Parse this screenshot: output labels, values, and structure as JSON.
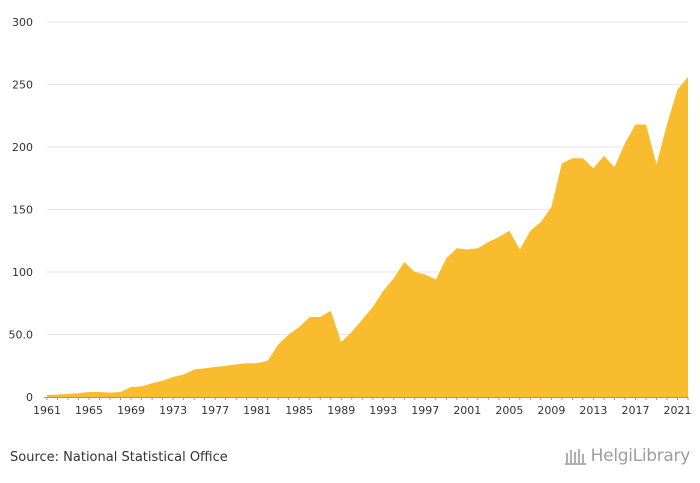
{
  "chart_data": {
    "type": "area",
    "title": "",
    "xlabel": "",
    "ylabel": "",
    "x": [
      1961,
      1962,
      1963,
      1964,
      1965,
      1966,
      1967,
      1968,
      1969,
      1970,
      1971,
      1972,
      1973,
      1974,
      1975,
      1976,
      1977,
      1978,
      1979,
      1980,
      1981,
      1982,
      1983,
      1984,
      1985,
      1986,
      1987,
      1988,
      1989,
      1990,
      1991,
      1992,
      1993,
      1994,
      1995,
      1996,
      1997,
      1998,
      1999,
      2000,
      2001,
      2002,
      2003,
      2004,
      2005,
      2006,
      2007,
      2008,
      2009,
      2010,
      2011,
      2012,
      2013,
      2014,
      2015,
      2016,
      2017,
      2018,
      2019,
      2020,
      2021,
      2022
    ],
    "values": [
      1.5,
      2,
      2.5,
      3,
      4,
      4,
      3.5,
      4,
      8,
      8.5,
      11,
      13,
      16,
      18,
      22,
      23,
      24,
      25,
      26,
      27,
      27,
      29,
      42,
      50,
      56,
      64,
      64,
      69,
      44,
      52,
      62,
      72,
      85,
      95,
      108,
      100,
      98,
      94,
      111,
      119,
      118,
      119,
      124,
      128,
      133,
      118,
      133,
      140,
      152,
      187,
      191,
      191,
      183,
      193,
      184,
      203,
      218,
      218,
      186,
      218,
      246,
      256
    ],
    "ylim": [
      0,
      300
    ],
    "y_ticks": [
      "0",
      "50.0",
      "100",
      "150",
      "200",
      "250",
      "300"
    ],
    "y_tick_values": [
      0,
      50,
      100,
      150,
      200,
      250,
      300
    ],
    "x_ticks": [
      "1961",
      "1965",
      "1969",
      "1973",
      "1977",
      "1981",
      "1985",
      "1989",
      "1993",
      "1997",
      "2001",
      "2005",
      "2009",
      "2013",
      "2017",
      "2021"
    ],
    "x_tick_values": [
      1961,
      1965,
      1969,
      1973,
      1977,
      1981,
      1985,
      1989,
      1993,
      1997,
      2001,
      2005,
      2009,
      2013,
      2017,
      2021
    ],
    "grid": true,
    "fill_color": "#f9bc2f",
    "grid_color": "#e6e6e6",
    "axis_color": "#999999"
  },
  "footer": {
    "source": "Source: National Statistical Office",
    "brand": "HelgiLibrary"
  }
}
